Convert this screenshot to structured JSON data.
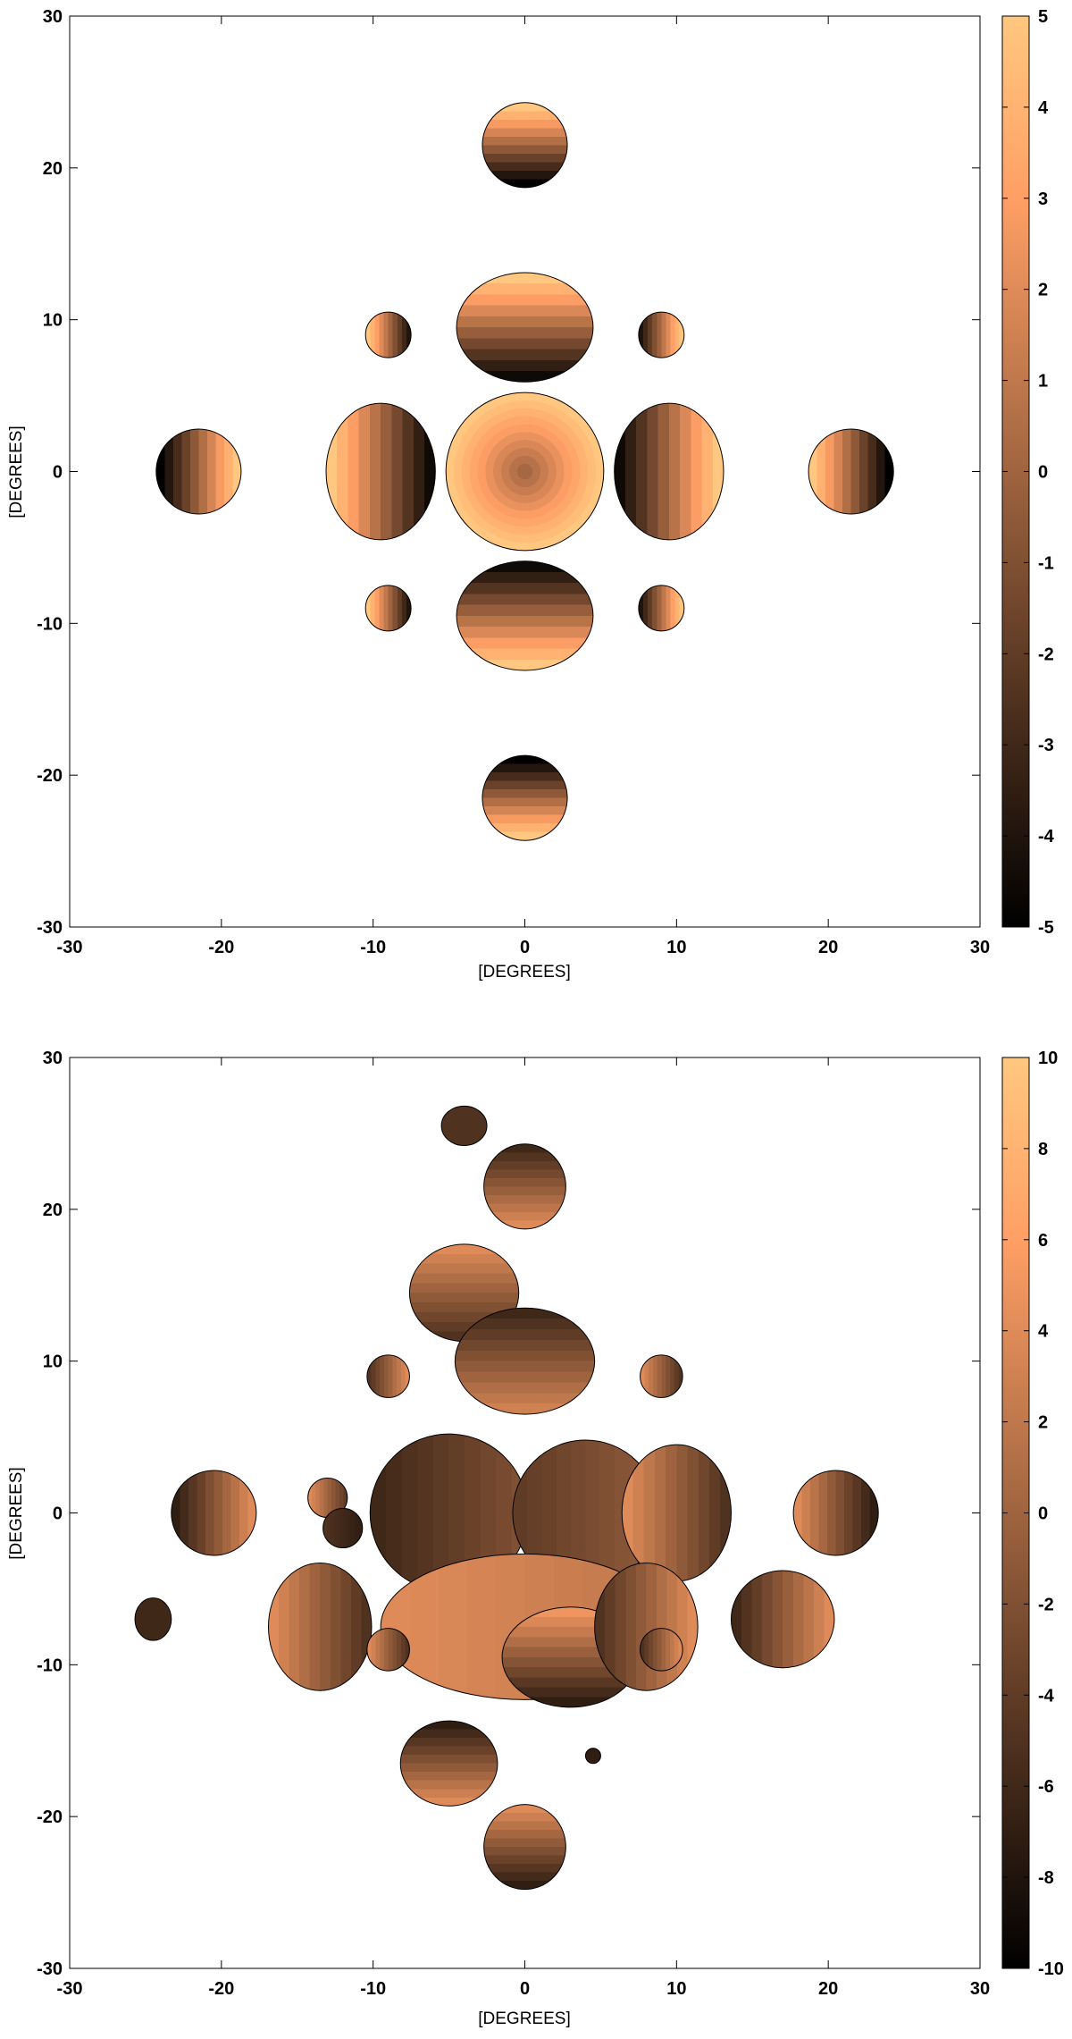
{
  "chart_data": [
    {
      "type": "heatmap",
      "title": "",
      "xlabel": "[DEGREES]",
      "ylabel": "[DEGREES]",
      "xlim": [
        -30,
        30
      ],
      "ylim": [
        -30,
        30
      ],
      "x_ticks": [
        -30,
        -20,
        -10,
        0,
        10,
        20,
        30
      ],
      "y_ticks": [
        -30,
        -20,
        -10,
        0,
        10,
        20,
        30
      ],
      "colorbar": {
        "range": [
          -5,
          5
        ],
        "ticks": [
          5,
          4,
          3,
          2,
          1,
          0,
          -1,
          -2,
          -3,
          -4,
          -5
        ],
        "colormap": "copper"
      },
      "grid": false,
      "lobes": [
        {
          "x": 0,
          "y": 0,
          "rx": 5.2,
          "ry": 5.2,
          "gradient": "radial",
          "from": 0.2,
          "to": 5
        },
        {
          "x": 0,
          "y": 9.5,
          "rx": 4.5,
          "ry": 3.6,
          "gradient": "vertical",
          "from": 5,
          "to": -4.5
        },
        {
          "x": 0,
          "y": -9.5,
          "rx": 4.5,
          "ry": 3.6,
          "gradient": "vertical",
          "from": -4.5,
          "to": 5
        },
        {
          "x": -9.5,
          "y": 0,
          "rx": 3.6,
          "ry": 4.5,
          "gradient": "horizontal",
          "from": 5,
          "to": -4.5
        },
        {
          "x": 9.5,
          "y": 0,
          "rx": 3.6,
          "ry": 4.5,
          "gradient": "horizontal",
          "from": -4.5,
          "to": 5
        },
        {
          "x": 0,
          "y": 21.5,
          "rx": 2.8,
          "ry": 2.8,
          "gradient": "vertical",
          "from": 5,
          "to": -5
        },
        {
          "x": 0,
          "y": -21.5,
          "rx": 2.8,
          "ry": 2.8,
          "gradient": "vertical",
          "from": -5,
          "to": 5
        },
        {
          "x": -21.5,
          "y": 0,
          "rx": 2.8,
          "ry": 2.8,
          "gradient": "horizontal",
          "from": -5,
          "to": 5
        },
        {
          "x": 21.5,
          "y": 0,
          "rx": 2.8,
          "ry": 2.8,
          "gradient": "horizontal",
          "from": 5,
          "to": -5
        },
        {
          "x": -9,
          "y": 9,
          "rx": 1.5,
          "ry": 1.5,
          "gradient": "horizontal",
          "from": 5,
          "to": -4
        },
        {
          "x": 9,
          "y": 9,
          "rx": 1.5,
          "ry": 1.5,
          "gradient": "horizontal",
          "from": -4,
          "to": 5
        },
        {
          "x": -9,
          "y": -9,
          "rx": 1.5,
          "ry": 1.5,
          "gradient": "horizontal",
          "from": 5,
          "to": -4
        },
        {
          "x": 9,
          "y": -9,
          "rx": 1.5,
          "ry": 1.5,
          "gradient": "horizontal",
          "from": -4,
          "to": 5
        }
      ]
    },
    {
      "type": "heatmap",
      "title": "",
      "xlabel": "[DEGREES]",
      "ylabel": "[DEGREES]",
      "xlim": [
        -30,
        30
      ],
      "ylim": [
        -30,
        30
      ],
      "x_ticks": [
        -30,
        -20,
        -10,
        0,
        10,
        20,
        30
      ],
      "y_ticks": [
        -30,
        -20,
        -10,
        0,
        10,
        20,
        30
      ],
      "colorbar": {
        "range": [
          -10,
          10
        ],
        "ticks": [
          10,
          8,
          6,
          4,
          2,
          0,
          -2,
          -4,
          -6,
          -8,
          -10
        ],
        "colormap": "copper"
      },
      "grid": false,
      "lobes": [
        {
          "x": -4,
          "y": 25.5,
          "rx": 1.5,
          "ry": 1.3,
          "gradient": "vertical",
          "from": -5,
          "to": -5
        },
        {
          "x": 0,
          "y": 21.5,
          "rx": 2.7,
          "ry": 2.8,
          "gradient": "vertical",
          "from": -6,
          "to": 4
        },
        {
          "x": -4,
          "y": 14.5,
          "rx": 3.6,
          "ry": 3.2,
          "gradient": "vertical",
          "from": 4,
          "to": -5
        },
        {
          "x": 0,
          "y": 10,
          "rx": 4.6,
          "ry": 3.5,
          "gradient": "vertical",
          "from": -6,
          "to": 3
        },
        {
          "x": -9,
          "y": 9,
          "rx": 1.4,
          "ry": 1.4,
          "gradient": "horizontal",
          "from": -5,
          "to": 4
        },
        {
          "x": 9,
          "y": 9,
          "rx": 1.4,
          "ry": 1.4,
          "gradient": "horizontal",
          "from": 4,
          "to": -5
        },
        {
          "x": -5,
          "y": 0,
          "rx": 5.2,
          "ry": 5.2,
          "gradient": "horizontal",
          "from": -6,
          "to": -2
        },
        {
          "x": 4,
          "y": 0,
          "rx": 4.8,
          "ry": 4.8,
          "gradient": "horizontal",
          "from": -4,
          "to": -1
        },
        {
          "x": -13,
          "y": 1,
          "rx": 1.3,
          "ry": 1.3,
          "gradient": "horizontal",
          "from": 4,
          "to": -4
        },
        {
          "x": -12,
          "y": -1,
          "rx": 1.3,
          "ry": 1.3,
          "gradient": "horizontal",
          "from": -5,
          "to": -7
        },
        {
          "x": 10,
          "y": 0,
          "rx": 3.6,
          "ry": 4.5,
          "gradient": "horizontal",
          "from": 4,
          "to": -5
        },
        {
          "x": -20.5,
          "y": 0,
          "rx": 2.8,
          "ry": 2.8,
          "gradient": "horizontal",
          "from": -7,
          "to": 4
        },
        {
          "x": 20.5,
          "y": 0,
          "rx": 2.8,
          "ry": 2.8,
          "gradient": "horizontal",
          "from": 4,
          "to": -7
        },
        {
          "x": -13.5,
          "y": -7.5,
          "rx": 3.4,
          "ry": 4.2,
          "gradient": "horizontal",
          "from": 4,
          "to": -5
        },
        {
          "x": 0,
          "y": -7.5,
          "rx": 9.5,
          "ry": 4.8,
          "gradient": "horizontal",
          "from": 4,
          "to": 2
        },
        {
          "x": 3,
          "y": -9.5,
          "rx": 4.5,
          "ry": 3.3,
          "gradient": "vertical",
          "from": 5,
          "to": -7
        },
        {
          "x": 8,
          "y": -7.5,
          "rx": 3.4,
          "ry": 4.2,
          "gradient": "horizontal",
          "from": -5,
          "to": 4
        },
        {
          "x": -9,
          "y": -9,
          "rx": 1.4,
          "ry": 1.4,
          "gradient": "horizontal",
          "from": 4,
          "to": -5
        },
        {
          "x": 9,
          "y": -9,
          "rx": 1.4,
          "ry": 1.4,
          "gradient": "horizontal",
          "from": -5,
          "to": 4
        },
        {
          "x": -24.5,
          "y": -7,
          "rx": 1.2,
          "ry": 1.4,
          "gradient": "horizontal",
          "from": -6,
          "to": -6
        },
        {
          "x": 17,
          "y": -7,
          "rx": 3.4,
          "ry": 3.2,
          "gradient": "horizontal",
          "from": -6,
          "to": 4
        },
        {
          "x": -5,
          "y": -16.5,
          "rx": 3.2,
          "ry": 2.8,
          "gradient": "vertical",
          "from": -7,
          "to": 4
        },
        {
          "x": 4.5,
          "y": -16,
          "rx": 0.5,
          "ry": 0.5,
          "gradient": "vertical",
          "from": -7,
          "to": -7
        },
        {
          "x": 0,
          "y": -22,
          "rx": 2.7,
          "ry": 2.8,
          "gradient": "vertical",
          "from": 4,
          "to": -7
        }
      ]
    }
  ]
}
